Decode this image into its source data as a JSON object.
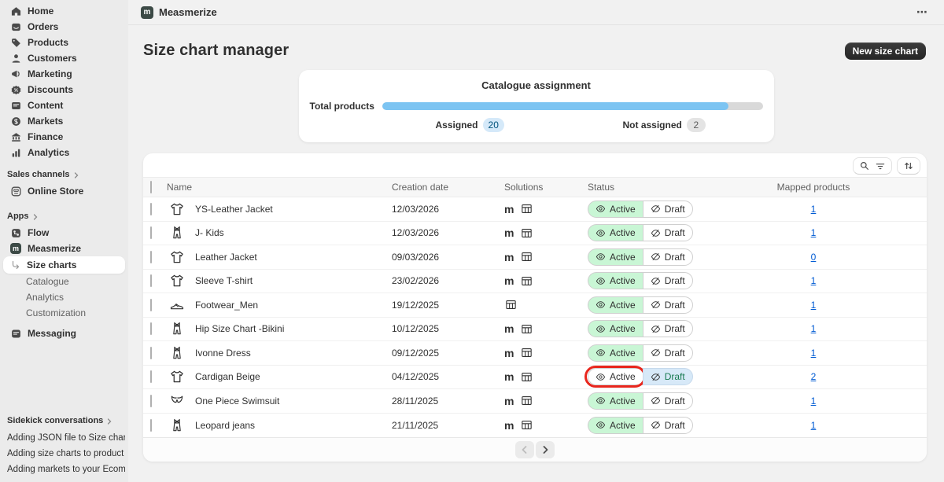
{
  "topbar": {
    "app_name": "Measmerize",
    "logo_letter": "m",
    "ellipsis_icon": "⋯"
  },
  "page": {
    "title": "Size chart manager",
    "new_size_chart_button": "New size chart"
  },
  "sidebar": {
    "main": [
      "Home",
      "Orders",
      "Products",
      "Customers",
      "Marketing",
      "Discounts",
      "Content",
      "Markets",
      "Finance",
      "Analytics"
    ],
    "sales_channels_label": "Sales channels",
    "online_store_label": "Online Store",
    "apps_label": "Apps",
    "flow_label": "Flow",
    "measmerize_label": "Measmerize",
    "measmerize_sub": [
      "Size charts",
      "Catalogue",
      "Analytics",
      "Customization"
    ],
    "messaging_label": "Messaging",
    "sidekick_label": "Sidekick conversations",
    "conversations": [
      "Adding JSON file to Size chart ...",
      "Adding size charts to product ...",
      "Adding markets to your Ecom..."
    ]
  },
  "catalogue_card": {
    "title": "Catalogue assignment",
    "total_label": "Total products",
    "assigned_label": "Assigned",
    "assigned_count": "20",
    "not_assigned_label": "Not assigned",
    "not_assigned_count": "2",
    "progress_percent": 91
  },
  "table": {
    "columns": {
      "name": "Name",
      "creation_date": "Creation date",
      "solutions": "Solutions",
      "status": "Status",
      "mapped_products": "Mapped products"
    },
    "status_active_label": "Active",
    "status_draft_label": "Draft",
    "rows": [
      {
        "name": "YS-Leather Jacket",
        "icon": "tshirt",
        "date": "12/03/2026",
        "solutions": [
          "m",
          "table"
        ],
        "state": "active",
        "mapped": "1"
      },
      {
        "name": "J- Kids",
        "icon": "overalls",
        "date": "12/03/2026",
        "solutions": [
          "m",
          "table"
        ],
        "state": "active",
        "mapped": "1"
      },
      {
        "name": "Leather Jacket",
        "icon": "tshirt",
        "date": "09/03/2026",
        "solutions": [
          "m",
          "table"
        ],
        "state": "active",
        "mapped": "0"
      },
      {
        "name": "Sleeve T-shirt",
        "icon": "tshirt",
        "date": "23/02/2026",
        "solutions": [
          "m",
          "table"
        ],
        "state": "active",
        "mapped": "1"
      },
      {
        "name": "Footwear_Men",
        "icon": "shoe",
        "date": "19/12/2025",
        "solutions": [
          "table"
        ],
        "state": "active",
        "mapped": "1"
      },
      {
        "name": "Hip Size Chart -Bikini",
        "icon": "overalls",
        "date": "10/12/2025",
        "solutions": [
          "m",
          "table"
        ],
        "state": "active",
        "mapped": "1"
      },
      {
        "name": "Ivonne Dress",
        "icon": "overalls",
        "date": "09/12/2025",
        "solutions": [
          "m",
          "table"
        ],
        "state": "active",
        "mapped": "1"
      },
      {
        "name": "Cardigan Beige",
        "icon": "tshirt",
        "date": "04/12/2025",
        "solutions": [
          "m",
          "table"
        ],
        "state": "draft",
        "mapped": "2",
        "annotated": true
      },
      {
        "name": "One Piece Swimsuit",
        "icon": "bikini",
        "date": "28/11/2025",
        "solutions": [
          "m",
          "table"
        ],
        "state": "active",
        "mapped": "1"
      },
      {
        "name": "Leopard jeans",
        "icon": "overalls",
        "date": "21/11/2025",
        "solutions": [
          "m",
          "table"
        ],
        "state": "active",
        "mapped": "1"
      }
    ]
  },
  "annotation": {
    "color": "#e8261d",
    "target_row": "Cardigan Beige",
    "target_label": "Active"
  },
  "colors": {
    "progress_blue": "#7cc4f2",
    "active_green_bg": "#c9f6d5",
    "draft_blue_bg": "#d7e9f8",
    "link_blue": "#005bd3",
    "sidebar_bg": "#ebebeb",
    "page_bg": "#f1f1f1"
  }
}
